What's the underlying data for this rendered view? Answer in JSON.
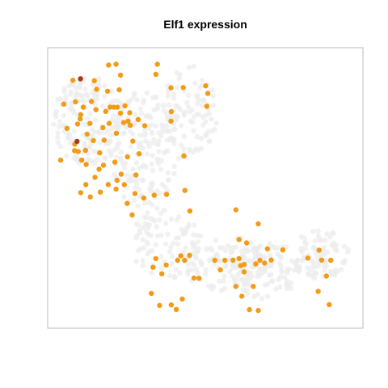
{
  "chart_data": {
    "type": "scatter",
    "title": "Elf1 expression",
    "xlabel": "",
    "ylabel": "",
    "xlim": [
      0,
      100
    ],
    "ylim": [
      0,
      100
    ],
    "grid": false,
    "legend": "none",
    "colors": {
      "background_points": "#ececec",
      "expressed": "#f29b16",
      "high": "#a33a1a",
      "frame": "#bdbdbd"
    },
    "expressed_points": [
      {
        "x": 5.1,
        "y": 79.9,
        "v": 1
      },
      {
        "x": 6.1,
        "y": 71.2,
        "v": 1
      },
      {
        "x": 4.1,
        "y": 59.9,
        "v": 1
      },
      {
        "x": 8.5,
        "y": 63.3,
        "v": 1
      },
      {
        "x": 10.5,
        "y": 76.1,
        "v": 1
      },
      {
        "x": 9.7,
        "y": 63.0,
        "v": 1
      },
      {
        "x": 8.0,
        "y": 88.4,
        "v": 1
      },
      {
        "x": 11.3,
        "y": 78.8,
        "v": 1
      },
      {
        "x": 10.8,
        "y": 59.9,
        "v": 1
      },
      {
        "x": 13.9,
        "y": 80.8,
        "v": 1
      },
      {
        "x": 15.3,
        "y": 77.9,
        "v": 1
      },
      {
        "x": 15.5,
        "y": 85.2,
        "v": 1
      },
      {
        "x": 13.4,
        "y": 73.0,
        "v": 1
      },
      {
        "x": 14.5,
        "y": 66.9,
        "v": 1
      },
      {
        "x": 12.5,
        "y": 69.2,
        "v": 1
      },
      {
        "x": 12.0,
        "y": 63.4,
        "v": 1
      },
      {
        "x": 16.5,
        "y": 62.5,
        "v": 1
      },
      {
        "x": 17.5,
        "y": 71.5,
        "v": 1
      },
      {
        "x": 14.8,
        "y": 88.2,
        "v": 1
      },
      {
        "x": 19.0,
        "y": 84.5,
        "v": 1
      },
      {
        "x": 18.4,
        "y": 77.3,
        "v": 1
      },
      {
        "x": 19.8,
        "y": 78.8,
        "v": 1
      },
      {
        "x": 21.0,
        "y": 78.8,
        "v": 1
      },
      {
        "x": 22.1,
        "y": 78.8,
        "v": 1
      },
      {
        "x": 23.1,
        "y": 76.7,
        "v": 1
      },
      {
        "x": 24.5,
        "y": 79.3,
        "v": 1
      },
      {
        "x": 19.5,
        "y": 73.0,
        "v": 1
      },
      {
        "x": 17.7,
        "y": 58.1,
        "v": 1
      },
      {
        "x": 16.3,
        "y": 56.7,
        "v": 1
      },
      {
        "x": 15.0,
        "y": 53.8,
        "v": 1
      },
      {
        "x": 12.1,
        "y": 51.2,
        "v": 1
      },
      {
        "x": 10.5,
        "y": 48.3,
        "v": 1
      },
      {
        "x": 13.5,
        "y": 46.8,
        "v": 1
      },
      {
        "x": 16.7,
        "y": 48.5,
        "v": 1
      },
      {
        "x": 19.2,
        "y": 51.2,
        "v": 1
      },
      {
        "x": 22.0,
        "y": 52.7,
        "v": 1
      },
      {
        "x": 24.3,
        "y": 51.2,
        "v": 1
      },
      {
        "x": 27.7,
        "y": 48.0,
        "v": 1
      },
      {
        "x": 25.2,
        "y": 44.5,
        "v": 1
      },
      {
        "x": 30.5,
        "y": 46.4,
        "v": 1
      },
      {
        "x": 33.8,
        "y": 47.4,
        "v": 1
      },
      {
        "x": 37.7,
        "y": 47.7,
        "v": 1
      },
      {
        "x": 43.5,
        "y": 49.1,
        "v": 1
      },
      {
        "x": 45.1,
        "y": 41.8,
        "v": 1
      },
      {
        "x": 26.8,
        "y": 40.4,
        "v": 1
      },
      {
        "x": 21.7,
        "y": 49.6,
        "v": 1
      },
      {
        "x": 25.3,
        "y": 61.1,
        "v": 1
      },
      {
        "x": 27.0,
        "y": 66.7,
        "v": 1
      },
      {
        "x": 21.8,
        "y": 69.5,
        "v": 1
      },
      {
        "x": 26.2,
        "y": 72.3,
        "v": 1
      },
      {
        "x": 24.1,
        "y": 73.3,
        "v": 1
      },
      {
        "x": 28.7,
        "y": 74.4,
        "v": 1
      },
      {
        "x": 30.8,
        "y": 72.2,
        "v": 1
      },
      {
        "x": 22.7,
        "y": 85.0,
        "v": 1
      },
      {
        "x": 19.3,
        "y": 93.8,
        "v": 1
      },
      {
        "x": 23.1,
        "y": 90.2,
        "v": 1
      },
      {
        "x": 21.7,
        "y": 94.1,
        "v": 1
      },
      {
        "x": 34.8,
        "y": 94.1,
        "v": 1
      },
      {
        "x": 34.3,
        "y": 90.5,
        "v": 1
      },
      {
        "x": 39.1,
        "y": 85.7,
        "v": 1
      },
      {
        "x": 39.2,
        "y": 77.2,
        "v": 1
      },
      {
        "x": 39.1,
        "y": 73.8,
        "v": 1
      },
      {
        "x": 43.0,
        "y": 85.8,
        "v": 1
      },
      {
        "x": 50.1,
        "y": 86.4,
        "v": 1
      },
      {
        "x": 50.8,
        "y": 83.7,
        "v": 1
      },
      {
        "x": 50.5,
        "y": 79.1,
        "v": 1
      },
      {
        "x": 43.2,
        "y": 61.4,
        "v": 1
      },
      {
        "x": 34.3,
        "y": 24.8,
        "v": 1
      },
      {
        "x": 33.4,
        "y": 21.7,
        "v": 1
      },
      {
        "x": 32.9,
        "y": 12.4,
        "v": 1
      },
      {
        "x": 35.5,
        "y": 8.1,
        "v": 1
      },
      {
        "x": 39.2,
        "y": 8.3,
        "v": 1
      },
      {
        "x": 40.8,
        "y": 6.7,
        "v": 1
      },
      {
        "x": 42.7,
        "y": 10.4,
        "v": 1
      },
      {
        "x": 37.6,
        "y": 22.5,
        "v": 1
      },
      {
        "x": 41.2,
        "y": 24.2,
        "v": 1
      },
      {
        "x": 42.2,
        "y": 25.8,
        "v": 1
      },
      {
        "x": 43.4,
        "y": 24.2,
        "v": 1
      },
      {
        "x": 45.0,
        "y": 26.0,
        "v": 1
      },
      {
        "x": 48.0,
        "y": 17.8,
        "v": 1
      },
      {
        "x": 53.0,
        "y": 24.2,
        "v": 1
      },
      {
        "x": 56.2,
        "y": 24.2,
        "v": 1
      },
      {
        "x": 54.8,
        "y": 20.8,
        "v": 1
      },
      {
        "x": 58.8,
        "y": 24.2,
        "v": 1
      },
      {
        "x": 61.2,
        "y": 22.3,
        "v": 1
      },
      {
        "x": 60.7,
        "y": 24.8,
        "v": 1
      },
      {
        "x": 62.3,
        "y": 22.7,
        "v": 1
      },
      {
        "x": 62.3,
        "y": 20.1,
        "v": 1
      },
      {
        "x": 66.0,
        "y": 22.9,
        "v": 1
      },
      {
        "x": 67.3,
        "y": 24.2,
        "v": 1
      },
      {
        "x": 68.8,
        "y": 23.2,
        "v": 1
      },
      {
        "x": 66.8,
        "y": 37.2,
        "v": 1
      },
      {
        "x": 63.1,
        "y": 30.4,
        "v": 1
      },
      {
        "x": 60.7,
        "y": 31.6,
        "v": 1
      },
      {
        "x": 59.7,
        "y": 42.2,
        "v": 1
      },
      {
        "x": 59.7,
        "y": 14.9,
        "v": 1
      },
      {
        "x": 61.6,
        "y": 11.4,
        "v": 1
      },
      {
        "x": 64.0,
        "y": 6.6,
        "v": 1
      },
      {
        "x": 66.8,
        "y": 6.3,
        "v": 1
      },
      {
        "x": 65.2,
        "y": 14.9,
        "v": 1
      },
      {
        "x": 69.7,
        "y": 28.3,
        "v": 1
      },
      {
        "x": 70.9,
        "y": 24.3,
        "v": 1
      },
      {
        "x": 74.6,
        "y": 27.9,
        "v": 1
      },
      {
        "x": 82.5,
        "y": 25.0,
        "v": 1
      },
      {
        "x": 86.1,
        "y": 27.8,
        "v": 1
      },
      {
        "x": 86.9,
        "y": 24.3,
        "v": 1
      },
      {
        "x": 89.8,
        "y": 24.2,
        "v": 1
      },
      {
        "x": 88.4,
        "y": 18.6,
        "v": 1
      },
      {
        "x": 85.8,
        "y": 13.1,
        "v": 1
      },
      {
        "x": 89.3,
        "y": 8.4,
        "v": 1
      },
      {
        "x": 28.0,
        "y": 54.6,
        "v": 1
      },
      {
        "x": 36.2,
        "y": 19.4,
        "v": 1
      },
      {
        "x": 46.4,
        "y": 17.9,
        "v": 1
      },
      {
        "x": 10.3,
        "y": 74.6,
        "v": 1
      },
      {
        "x": 9.5,
        "y": 72.8,
        "v": 1
      },
      {
        "x": 8.6,
        "y": 65.6,
        "v": 1
      },
      {
        "x": 25.5,
        "y": 73.8,
        "v": 1
      },
      {
        "x": 29.0,
        "y": 62.2,
        "v": 1
      },
      {
        "x": 17.9,
        "y": 67.0,
        "v": 1
      },
      {
        "x": 23.3,
        "y": 54.9,
        "v": 1
      },
      {
        "x": 8.8,
        "y": 80.7,
        "v": 1
      },
      {
        "x": 26.0,
        "y": 76.8,
        "v": 1
      },
      {
        "x": 21.3,
        "y": 59.2,
        "v": 1
      },
      {
        "x": 12.2,
        "y": 58.4,
        "v": 1
      },
      {
        "x": 10.4,
        "y": 88.9,
        "v": 2
      },
      {
        "x": 9.3,
        "y": 66.6,
        "v": 2
      }
    ]
  }
}
